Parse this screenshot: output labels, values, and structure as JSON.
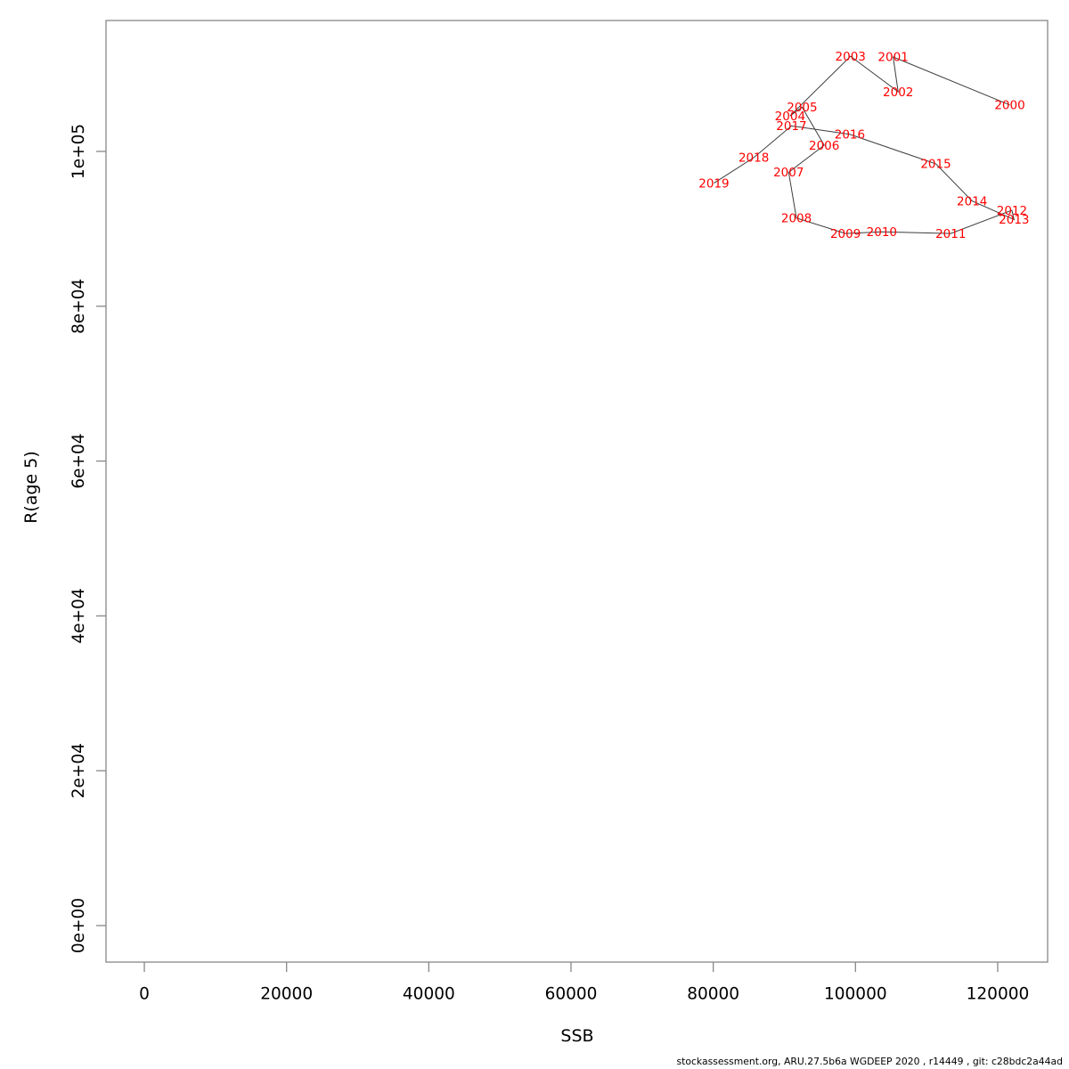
{
  "page": {
    "background": "#ffffff"
  },
  "footer": {
    "text": "stockassessment.org, ARU.27.5b6a WGDEEP 2020 , r14449 , git: c28bdc2a44ad"
  },
  "chart_data": {
    "type": "scatter",
    "subtype": "labeled-path-stock-recruitment",
    "title": "",
    "xlabel": "SSB",
    "ylabel": "R(age 5)",
    "xlim": [
      -5390,
      127020
    ],
    "ylim": [
      -4720,
      116910
    ],
    "grid": false,
    "legend": false,
    "x_ticks": {
      "values": [
        0,
        20000,
        40000,
        60000,
        80000,
        100000,
        120000
      ],
      "labels": [
        "0",
        "20000",
        "40000",
        "60000",
        "80000",
        "100000",
        "120000"
      ]
    },
    "y_ticks": {
      "values": [
        0,
        20000,
        40000,
        60000,
        80000,
        100000
      ],
      "labels": [
        "0e+00",
        "2e+04",
        "4e+04",
        "6e+04",
        "8e+04",
        "1e+05"
      ]
    },
    "colors": {
      "point_label": "#ff0000",
      "line": "#3c3c3c",
      "axis": "#878787",
      "text": "#000000"
    },
    "line_between_points": true,
    "points": [
      {
        "label": "2000",
        "x": 121700,
        "y": 106000
      },
      {
        "label": "2001",
        "x": 105300,
        "y": 112200
      },
      {
        "label": "2002",
        "x": 106000,
        "y": 107700
      },
      {
        "label": "2003",
        "x": 99300,
        "y": 112300
      },
      {
        "label": "2004",
        "x": 90800,
        "y": 104600
      },
      {
        "label": "2005",
        "x": 92500,
        "y": 105700
      },
      {
        "label": "2006",
        "x": 95600,
        "y": 100800
      },
      {
        "label": "2007",
        "x": 90600,
        "y": 97300
      },
      {
        "label": "2008",
        "x": 91700,
        "y": 91400
      },
      {
        "label": "2009",
        "x": 98600,
        "y": 89400
      },
      {
        "label": "2010",
        "x": 103700,
        "y": 89600
      },
      {
        "label": "2011",
        "x": 113400,
        "y": 89400
      },
      {
        "label": "2012",
        "x": 122000,
        "y": 92400
      },
      {
        "label": "2013",
        "x": 122300,
        "y": 91200
      },
      {
        "label": "2014",
        "x": 116400,
        "y": 93600
      },
      {
        "label": "2015",
        "x": 111300,
        "y": 98400
      },
      {
        "label": "2016",
        "x": 99200,
        "y": 102200
      },
      {
        "label": "2017",
        "x": 91000,
        "y": 103300
      },
      {
        "label": "2018",
        "x": 85700,
        "y": 99200
      },
      {
        "label": "2019",
        "x": 80100,
        "y": 95900
      }
    ]
  }
}
